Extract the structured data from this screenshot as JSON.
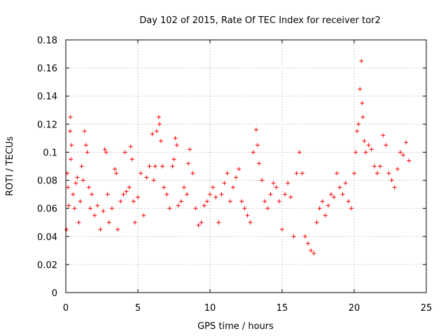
{
  "chart_data": {
    "type": "scatter",
    "title": "Day 102 of 2015, Rate Of TEC Index for receiver tor2",
    "xlabel": "GPS time / hours",
    "ylabel": "ROTI / TECUs",
    "xlim": [
      0,
      25
    ],
    "ylim": [
      0,
      0.18
    ],
    "xticks": [
      "0",
      "5",
      "10",
      "15",
      "20",
      "25"
    ],
    "yticks": [
      "0",
      "0.02",
      "0.04",
      "0.06",
      "0.08",
      "0.1",
      "0.12",
      "0.14",
      "0.16",
      "0.18"
    ],
    "grid": true,
    "marker": "+",
    "color": "#ff0000",
    "series": [
      {
        "points": [
          [
            0.05,
            0.045
          ],
          [
            0.1,
            0.085
          ],
          [
            0.15,
            0.075
          ],
          [
            0.2,
            0.062
          ],
          [
            0.3,
            0.115
          ],
          [
            0.32,
            0.125
          ],
          [
            0.35,
            0.095
          ],
          [
            0.4,
            0.105
          ],
          [
            0.5,
            0.07
          ],
          [
            0.6,
            0.06
          ],
          [
            0.7,
            0.078
          ],
          [
            0.8,
            0.082
          ],
          [
            0.9,
            0.05
          ],
          [
            1.0,
            0.065
          ],
          [
            1.1,
            0.09
          ],
          [
            1.2,
            0.08
          ],
          [
            1.3,
            0.115
          ],
          [
            1.4,
            0.105
          ],
          [
            1.5,
            0.1
          ],
          [
            1.6,
            0.075
          ],
          [
            1.7,
            0.06
          ],
          [
            1.8,
            0.07
          ],
          [
            2.0,
            0.055
          ],
          [
            2.2,
            0.062
          ],
          [
            2.4,
            0.045
          ],
          [
            2.6,
            0.058
          ],
          [
            2.7,
            0.102
          ],
          [
            2.8,
            0.1
          ],
          [
            2.9,
            0.07
          ],
          [
            3.0,
            0.05
          ],
          [
            3.2,
            0.06
          ],
          [
            3.4,
            0.088
          ],
          [
            3.5,
            0.085
          ],
          [
            3.6,
            0.045
          ],
          [
            3.8,
            0.065
          ],
          [
            4.0,
            0.07
          ],
          [
            4.1,
            0.1
          ],
          [
            4.2,
            0.072
          ],
          [
            4.4,
            0.075
          ],
          [
            4.5,
            0.104
          ],
          [
            4.6,
            0.095
          ],
          [
            4.7,
            0.065
          ],
          [
            4.8,
            0.05
          ],
          [
            5.0,
            0.068
          ],
          [
            5.2,
            0.085
          ],
          [
            5.4,
            0.055
          ],
          [
            5.6,
            0.082
          ],
          [
            5.8,
            0.09
          ],
          [
            6.0,
            0.113
          ],
          [
            6.1,
            0.08
          ],
          [
            6.2,
            0.09
          ],
          [
            6.3,
            0.115
          ],
          [
            6.45,
            0.125
          ],
          [
            6.5,
            0.12
          ],
          [
            6.6,
            0.108
          ],
          [
            6.7,
            0.09
          ],
          [
            6.8,
            0.075
          ],
          [
            7.0,
            0.07
          ],
          [
            7.2,
            0.06
          ],
          [
            7.4,
            0.09
          ],
          [
            7.5,
            0.095
          ],
          [
            7.6,
            0.11
          ],
          [
            7.7,
            0.105
          ],
          [
            7.8,
            0.062
          ],
          [
            8.0,
            0.065
          ],
          [
            8.2,
            0.075
          ],
          [
            8.4,
            0.07
          ],
          [
            8.5,
            0.092
          ],
          [
            8.6,
            0.102
          ],
          [
            8.8,
            0.085
          ],
          [
            9.0,
            0.06
          ],
          [
            9.2,
            0.048
          ],
          [
            9.4,
            0.05
          ],
          [
            9.6,
            0.062
          ],
          [
            9.8,
            0.065
          ],
          [
            10.0,
            0.07
          ],
          [
            10.2,
            0.075
          ],
          [
            10.4,
            0.068
          ],
          [
            10.6,
            0.05
          ],
          [
            10.8,
            0.07
          ],
          [
            11.0,
            0.078
          ],
          [
            11.2,
            0.085
          ],
          [
            11.4,
            0.065
          ],
          [
            11.6,
            0.075
          ],
          [
            11.8,
            0.082
          ],
          [
            12.0,
            0.088
          ],
          [
            12.2,
            0.065
          ],
          [
            12.4,
            0.06
          ],
          [
            12.6,
            0.055
          ],
          [
            12.8,
            0.05
          ],
          [
            13.0,
            0.1
          ],
          [
            13.2,
            0.116
          ],
          [
            13.3,
            0.105
          ],
          [
            13.4,
            0.092
          ],
          [
            13.6,
            0.08
          ],
          [
            13.8,
            0.065
          ],
          [
            14.0,
            0.06
          ],
          [
            14.2,
            0.07
          ],
          [
            14.4,
            0.078
          ],
          [
            14.6,
            0.075
          ],
          [
            14.8,
            0.065
          ],
          [
            15.0,
            0.045
          ],
          [
            15.2,
            0.07
          ],
          [
            15.4,
            0.078
          ],
          [
            15.6,
            0.068
          ],
          [
            15.8,
            0.04
          ],
          [
            16.0,
            0.085
          ],
          [
            16.2,
            0.1
          ],
          [
            16.4,
            0.085
          ],
          [
            16.6,
            0.04
          ],
          [
            16.8,
            0.035
          ],
          [
            17.0,
            0.03
          ],
          [
            17.2,
            0.028
          ],
          [
            17.4,
            0.05
          ],
          [
            17.6,
            0.06
          ],
          [
            17.8,
            0.065
          ],
          [
            18.0,
            0.055
          ],
          [
            18.2,
            0.062
          ],
          [
            18.4,
            0.07
          ],
          [
            18.6,
            0.068
          ],
          [
            18.8,
            0.085
          ],
          [
            19.0,
            0.075
          ],
          [
            19.2,
            0.07
          ],
          [
            19.4,
            0.078
          ],
          [
            19.6,
            0.065
          ],
          [
            19.8,
            0.06
          ],
          [
            20.0,
            0.085
          ],
          [
            20.1,
            0.1
          ],
          [
            20.2,
            0.115
          ],
          [
            20.3,
            0.12
          ],
          [
            20.4,
            0.145
          ],
          [
            20.5,
            0.165
          ],
          [
            20.55,
            0.135
          ],
          [
            20.6,
            0.125
          ],
          [
            20.7,
            0.108
          ],
          [
            20.8,
            0.1
          ],
          [
            21.0,
            0.105
          ],
          [
            21.2,
            0.102
          ],
          [
            21.4,
            0.09
          ],
          [
            21.6,
            0.085
          ],
          [
            21.8,
            0.09
          ],
          [
            22.0,
            0.112
          ],
          [
            22.2,
            0.105
          ],
          [
            22.4,
            0.085
          ],
          [
            22.6,
            0.08
          ],
          [
            22.8,
            0.075
          ],
          [
            23.0,
            0.088
          ],
          [
            23.2,
            0.1
          ],
          [
            23.4,
            0.098
          ],
          [
            23.6,
            0.107
          ],
          [
            23.8,
            0.094
          ]
        ]
      }
    ]
  }
}
